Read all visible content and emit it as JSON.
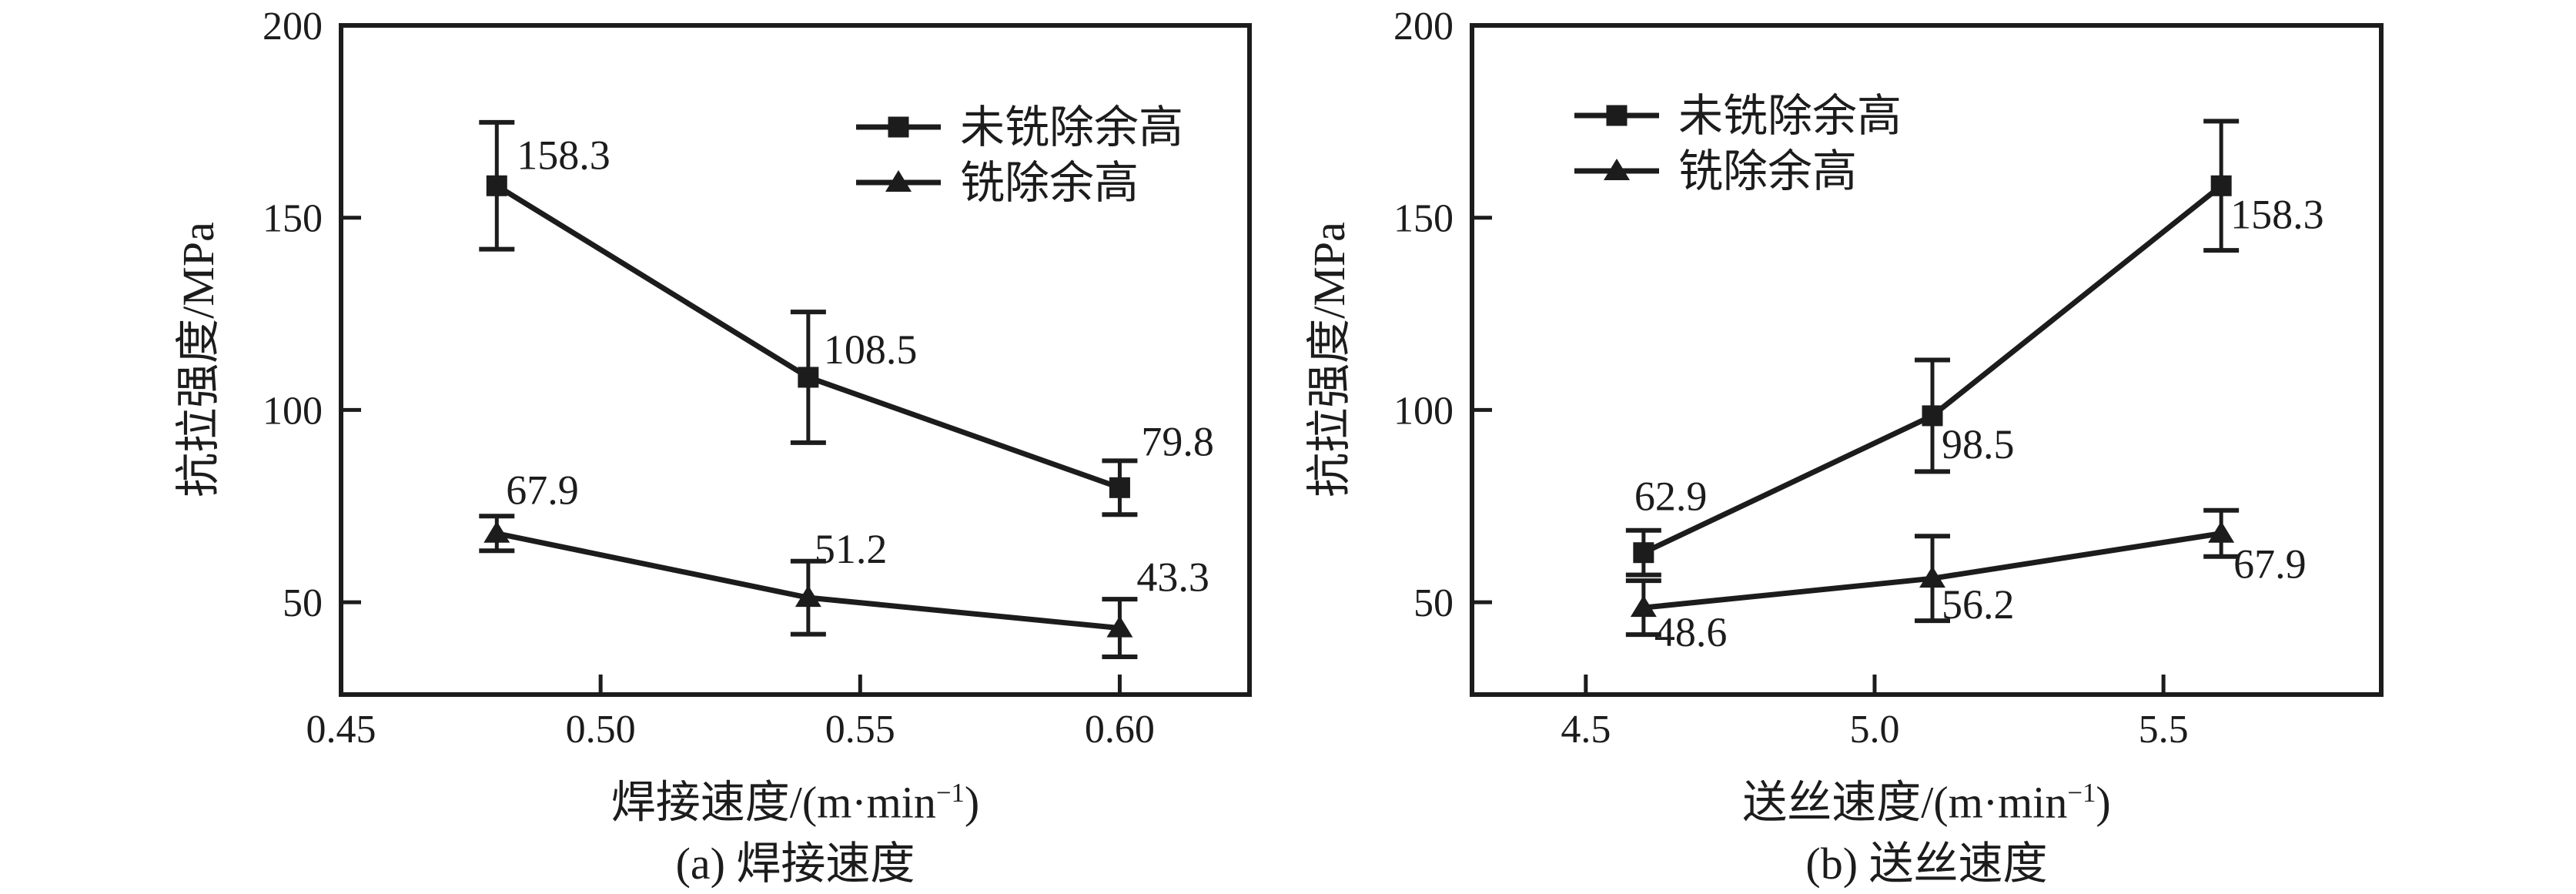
{
  "chart_data": [
    {
      "type": "line",
      "panel": "a",
      "caption": "(a) 焊接速度",
      "xlabel": {
        "pre": "焊接速度/(m·min",
        "sup": "−1",
        "post": ")"
      },
      "ylabel": "抗拉强度/MPa",
      "xlim": [
        0.45,
        0.625
      ],
      "ylim": [
        26,
        200
      ],
      "grid": false,
      "legend_position": "top-right-inside",
      "xticks": [
        {
          "v": 0.45,
          "label": "0.45"
        },
        {
          "v": 0.5,
          "label": "0.50"
        },
        {
          "v": 0.55,
          "label": "0.55"
        },
        {
          "v": 0.6,
          "label": "0.60"
        }
      ],
      "yticks": [
        {
          "v": 50,
          "label": "50"
        },
        {
          "v": 100,
          "label": "100"
        },
        {
          "v": 150,
          "label": "150"
        },
        {
          "v": 200,
          "label": "200"
        }
      ],
      "legend": [
        {
          "name": "未铣除余高",
          "marker": "square"
        },
        {
          "name": "铣除余高",
          "marker": "triangle"
        }
      ],
      "series": [
        {
          "name": "未铣除余高",
          "marker": "square",
          "points": [
            {
              "x": 0.48,
              "y": 158.3,
              "err": 16.5,
              "label": "158.3",
              "dx": 26,
              "dy": -22
            },
            {
              "x": 0.54,
              "y": 108.5,
              "err": 17.0,
              "label": "108.5",
              "dx": 20,
              "dy": -18
            },
            {
              "x": 0.6,
              "y": 79.8,
              "err": 7.0,
              "label": "79.8",
              "dx": 28,
              "dy": -42
            }
          ]
        },
        {
          "name": "铣除余高",
          "marker": "triangle",
          "points": [
            {
              "x": 0.48,
              "y": 67.9,
              "err": 4.5,
              "label": "67.9",
              "dx": 12,
              "dy": -38
            },
            {
              "x": 0.54,
              "y": 51.2,
              "err": 9.5,
              "label": "51.2",
              "dx": 8,
              "dy": -45
            },
            {
              "x": 0.6,
              "y": 43.3,
              "err": 7.5,
              "label": "43.3",
              "dx": 22,
              "dy": -48
            }
          ]
        }
      ]
    },
    {
      "type": "line",
      "panel": "b",
      "caption": "(b) 送丝速度",
      "xlabel": {
        "pre": "送丝速度/(m·min",
        "sup": "−1",
        "post": ")"
      },
      "ylabel": "抗拉强度/MPa",
      "xlim": [
        4.303,
        5.877
      ],
      "ylim": [
        26,
        200
      ],
      "grid": false,
      "legend_position": "top-left-inside",
      "xticks": [
        {
          "v": 4.5,
          "label": "4.5"
        },
        {
          "v": 5.0,
          "label": "5.0"
        },
        {
          "v": 5.5,
          "label": "5.5"
        }
      ],
      "yticks": [
        {
          "v": 50,
          "label": "50"
        },
        {
          "v": 100,
          "label": "100"
        },
        {
          "v": 150,
          "label": "150"
        },
        {
          "v": 200,
          "label": "200"
        }
      ],
      "legend": [
        {
          "name": "未铣除余高",
          "marker": "square"
        },
        {
          "name": "铣除余高",
          "marker": "triangle"
        }
      ],
      "series": [
        {
          "name": "未铣除余高",
          "marker": "square",
          "points": [
            {
              "x": 4.6,
              "y": 62.9,
              "err": 5.8,
              "label": "62.9",
              "dx": -12,
              "dy": -55
            },
            {
              "x": 5.1,
              "y": 98.5,
              "err": 14.5,
              "label": "98.5",
              "dx": 12,
              "dy": 55
            },
            {
              "x": 5.6,
              "y": 158.3,
              "err": 16.8,
              "label": "158.3",
              "dx": 12,
              "dy": 55
            }
          ]
        },
        {
          "name": "铣除余高",
          "marker": "triangle",
          "points": [
            {
              "x": 4.6,
              "y": 48.6,
              "err": 7.0,
              "label": "48.6",
              "dx": 14,
              "dy": 50
            },
            {
              "x": 5.1,
              "y": 56.2,
              "err": 11.0,
              "label": "56.2",
              "dx": 12,
              "dy": 52
            },
            {
              "x": 5.6,
              "y": 67.9,
              "err": 6.0,
              "label": "67.9",
              "dx": 16,
              "dy": 58
            }
          ]
        }
      ]
    }
  ],
  "style": {
    "ink_color": "#1c1c1c",
    "background_color": "#ffffff"
  }
}
